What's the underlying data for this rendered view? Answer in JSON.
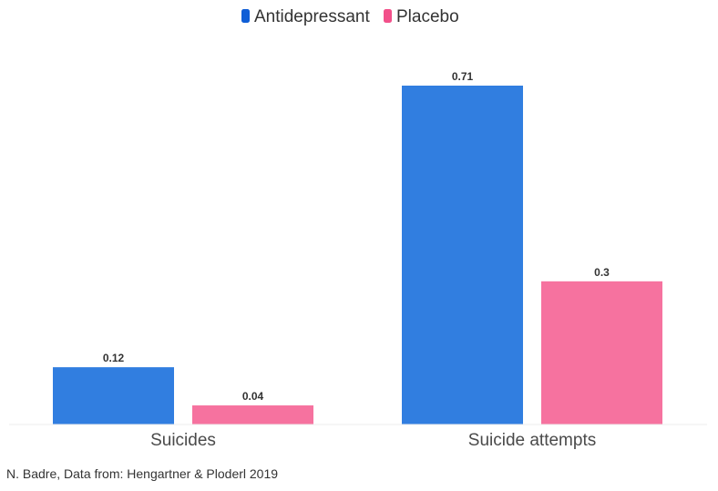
{
  "chart_data": {
    "type": "bar",
    "title": "",
    "xlabel": "",
    "ylabel": "",
    "categories": [
      "Suicides",
      "Suicide attempts"
    ],
    "series": [
      {
        "name": "Antidepressant",
        "values": [
          0.12,
          0.71
        ],
        "color": "#317ee0",
        "legend_color": "#0f5ed6"
      },
      {
        "name": "Placebo",
        "values": [
          0.04,
          0.3
        ],
        "color": "#f6729f",
        "legend_color": "#f2508a"
      }
    ],
    "data_labels": [
      [
        "0.12",
        "0.71"
      ],
      [
        "0.04",
        "0.3"
      ]
    ],
    "ylim": [
      0,
      0.71
    ],
    "grid": false,
    "legend_position": "top-center"
  },
  "source": "N. Badre, Data from: Hengartner & Ploderl 2019"
}
